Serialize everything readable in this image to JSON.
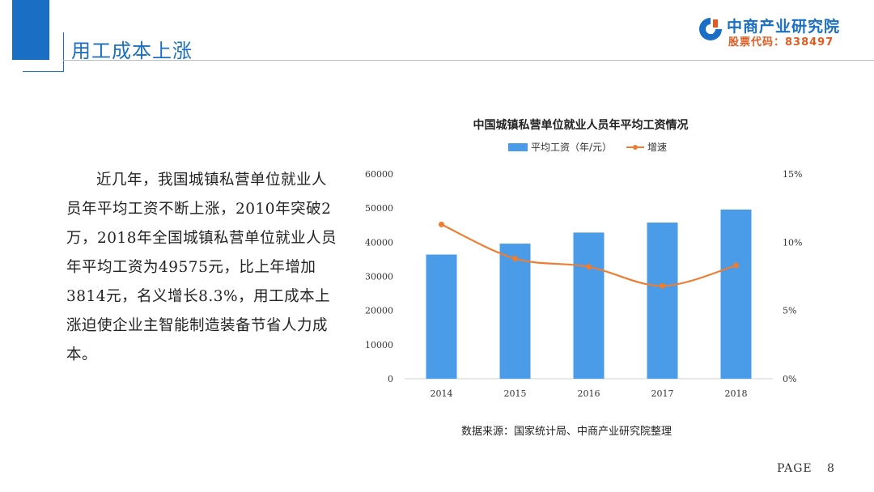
{
  "header": {
    "title": "用工成本上涨"
  },
  "logo": {
    "name": "中商产业研究院",
    "stock": "股票代码：838497"
  },
  "body": {
    "paragraph": "近几年，我国城镇私营单位就业人员年平均工资不断上涨，2010年突破2万，2018年全国城镇私营单位就业人员年平均工资为49575元，比上年增加3814元，名义增长8.3%，用工成本上涨迫使企业主智能制造装备节省人力成本。"
  },
  "chart_data": {
    "type": "bar",
    "title": "中国城镇私营单位就业人员年平均工资情况",
    "categories": [
      "2014",
      "2015",
      "2016",
      "2017",
      "2018"
    ],
    "series": [
      {
        "name": "平均工资（年/元）",
        "type": "bar",
        "axis": "left",
        "values": [
          36390,
          39589,
          42833,
          45761,
          49575
        ],
        "color": "#4a9be8"
      },
      {
        "name": "增速",
        "type": "line",
        "axis": "right",
        "values": [
          11.3,
          8.8,
          8.2,
          6.8,
          8.3
        ],
        "color": "#ed7d31"
      }
    ],
    "y_left": {
      "ticks": [
        "0",
        "10000",
        "20000",
        "30000",
        "40000",
        "50000",
        "60000"
      ],
      "range": [
        0,
        60000
      ]
    },
    "y_right": {
      "ticks": [
        "0%",
        "5%",
        "10%",
        "15%"
      ],
      "range": [
        0,
        15
      ]
    },
    "legend_position": "top",
    "grid": false
  },
  "source": "数据来源：国家统计局、中商产业研究院整理",
  "footer": {
    "page_label": "PAGE",
    "page_number": "8"
  }
}
